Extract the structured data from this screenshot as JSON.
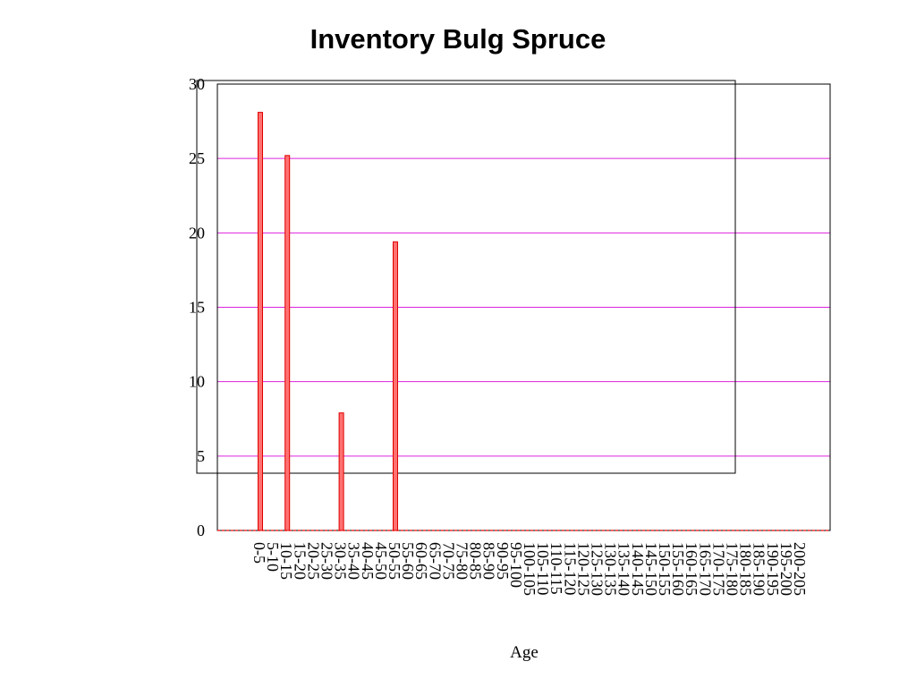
{
  "chart_data": {
    "type": "bar",
    "title": "Inventory Bulg Spruce",
    "xlabel": "Age",
    "ylabel": "",
    "ylim": [
      0,
      30
    ],
    "yticks": [
      0,
      5,
      10,
      15,
      20,
      25,
      30
    ],
    "grid": true,
    "legend": "none",
    "colors": {
      "bar_fill": "#ff7070",
      "bar_stroke": "#e00000",
      "grid": "#dd22dd",
      "baseline": "#ff3030",
      "frame": "#000000"
    },
    "categories": [
      "0-5",
      "5-10",
      "10-15",
      "15-20",
      "20-25",
      "25-30",
      "30-35",
      "35-40",
      "40-45",
      "45-50",
      "50-55",
      "55-60",
      "60-65",
      "65-70",
      "70-75",
      "75-80",
      "80-85",
      "85-90",
      "90-95",
      "95-100",
      "100-105",
      "105-110",
      "110-115",
      "115-120",
      "120-125",
      "125-130",
      "130-135",
      "135-140",
      "140-145",
      "145-150",
      "150-155",
      "155-160",
      "160-165",
      "165-170",
      "170-175",
      "175-180",
      "180-185",
      "185-190",
      "190-195",
      "195-200",
      "200-205"
    ],
    "values": [
      28.1,
      0,
      25.2,
      0,
      0,
      0,
      7.9,
      0,
      0,
      0,
      19.4,
      0,
      0,
      0,
      0,
      0,
      0,
      0,
      0,
      0,
      0,
      0,
      0,
      0,
      0,
      0,
      0,
      0,
      0,
      0,
      0,
      0,
      0,
      0,
      0,
      0,
      0,
      0,
      0,
      0,
      0
    ]
  }
}
